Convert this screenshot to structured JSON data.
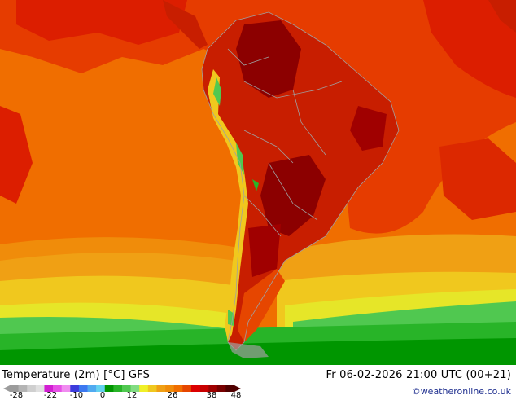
{
  "map": {
    "title": "Temperature (2m) [°C] GFS",
    "datetime": "Fr 06-02-2026 21:00 UTC (00+21)",
    "credit": "©weatheronline.co.uk",
    "scale": {
      "ticks": [
        "-28",
        "-22",
        "-10",
        "0",
        "12",
        "26",
        "38",
        "48"
      ],
      "colors": [
        "#9b9b9b",
        "#b4b4b4",
        "#cfcfcf",
        "#e0e0e0",
        "#d21ed2",
        "#e650e6",
        "#f08cf0",
        "#3c3cdc",
        "#3c78f0",
        "#50aaf0",
        "#64d2f0",
        "#009600",
        "#28b428",
        "#50c850",
        "#82dc82",
        "#f0f028",
        "#f0c81e",
        "#f0a014",
        "#f08c0a",
        "#f06e00",
        "#e64600",
        "#dc0000",
        "#c80000",
        "#a00000",
        "#780000",
        "#500000"
      ],
      "colors_hex_note": ""
    },
    "palette": {
      "ocean_warm": "#f06e00",
      "ocean_hot": "#e63c00",
      "land_hot": "#c81e00",
      "land_very_hot": "#8c0000",
      "cool_yellow": "#f0c81e",
      "cold_green": "#28b428",
      "borders": "#a0a0a0"
    }
  }
}
